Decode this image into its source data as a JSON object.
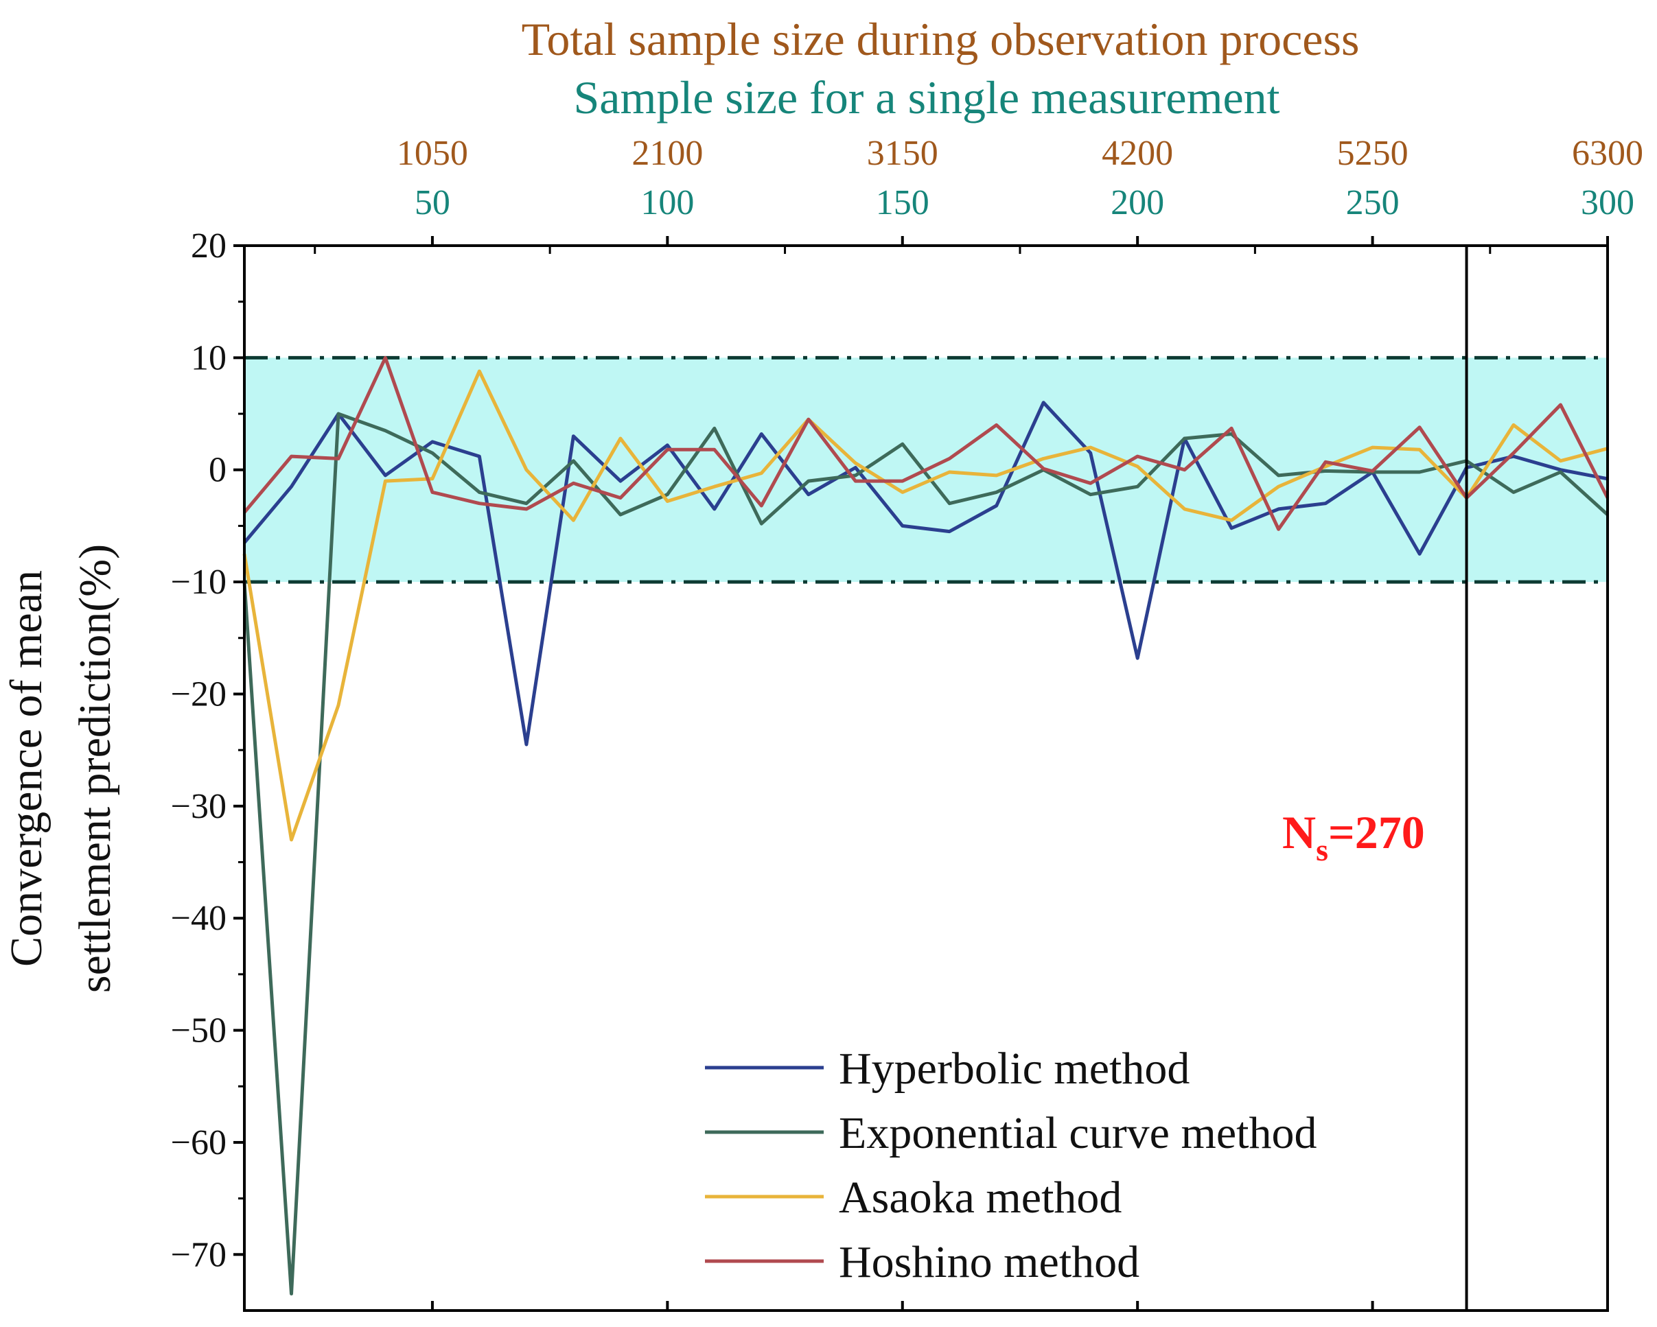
{
  "chart_data": {
    "type": "line",
    "title_total": "Total sample size during observation process",
    "title_single": "Sample size for a single measurement",
    "ylabel_line1": "Convergence of mean",
    "ylabel_line2": "settlement prediction(%)",
    "xlim": [
      10,
      300
    ],
    "ylim": [
      -75,
      20
    ],
    "y_ticks": [
      20,
      10,
      0,
      -10,
      -20,
      -30,
      -40,
      -50,
      -60,
      -70
    ],
    "y_tick_labels": [
      "20",
      "10",
      "0",
      "−10",
      "−20",
      "−30",
      "−40",
      "−50",
      "−60",
      "−70"
    ],
    "x_ticks_single": [
      50,
      100,
      150,
      200,
      250,
      300
    ],
    "x_tick_labels_single": [
      "50",
      "100",
      "150",
      "200",
      "250",
      "300"
    ],
    "x_tick_labels_total": [
      "1050",
      "2100",
      "3150",
      "4200",
      "5250",
      "6300"
    ],
    "band": {
      "lower": -10,
      "upper": 10,
      "color": "#bff7f4",
      "line_color": "#0d3b33"
    },
    "vline_x": 270,
    "annotation": {
      "main": "N",
      "sub": "s",
      "rest": "=270",
      "color": "#ff1a1a"
    },
    "x": [
      10,
      20,
      30,
      40,
      50,
      60,
      70,
      80,
      90,
      100,
      110,
      120,
      130,
      140,
      150,
      160,
      170,
      180,
      190,
      200,
      210,
      220,
      230,
      240,
      250,
      260,
      270,
      280,
      290,
      300
    ],
    "series": [
      {
        "name": "Hyperbolic method",
        "color": "#2b3f8f",
        "values": [
          -6.5,
          -1.5,
          5,
          -0.5,
          2.5,
          1.2,
          -24.5,
          3,
          -1,
          2.2,
          -3.5,
          3.2,
          -2.2,
          0.2,
          -5,
          -5.5,
          -3.2,
          6,
          1.5,
          -16.8,
          2.8,
          -5.2,
          -3.5,
          -3,
          -0.2,
          -7.5,
          0.2,
          1.2,
          0,
          -0.8
        ]
      },
      {
        "name": "Exponential curve method",
        "color": "#3e6a5a",
        "values": [
          -10,
          -73.5,
          5,
          3.5,
          1.5,
          -2,
          -3,
          0.8,
          -4,
          -2.2,
          3.7,
          -4.8,
          -1,
          -0.5,
          2.3,
          -3,
          -2,
          0,
          -2.2,
          -1.5,
          2.8,
          3.2,
          -0.5,
          -0.1,
          -0.2,
          -0.2,
          0.8,
          -2,
          -0.2,
          -4
        ]
      },
      {
        "name": "Asaoka method",
        "color": "#e8b43a",
        "values": [
          -7.5,
          -33,
          -21,
          -1,
          -0.8,
          8.8,
          0,
          -4.5,
          2.8,
          -2.8,
          -1.5,
          -0.3,
          4.5,
          0.6,
          -2,
          -0.2,
          -0.5,
          1,
          2,
          0.3,
          -3.5,
          -4.5,
          -1.5,
          0.3,
          2,
          1.8,
          -2.5,
          4,
          0.8,
          1.9
        ]
      },
      {
        "name": "Hoshino method",
        "color": "#b04a4f",
        "values": [
          -3.8,
          1.2,
          1,
          10,
          -2,
          -3,
          -3.5,
          -1.2,
          -2.5,
          1.8,
          1.8,
          -3.2,
          4.5,
          -1,
          -1,
          1,
          4,
          0.1,
          -1.2,
          1.2,
          0,
          3.7,
          -5.3,
          0.7,
          -0.1,
          3.8,
          -2.5,
          1.5,
          5.8,
          -2.5
        ]
      }
    ]
  }
}
